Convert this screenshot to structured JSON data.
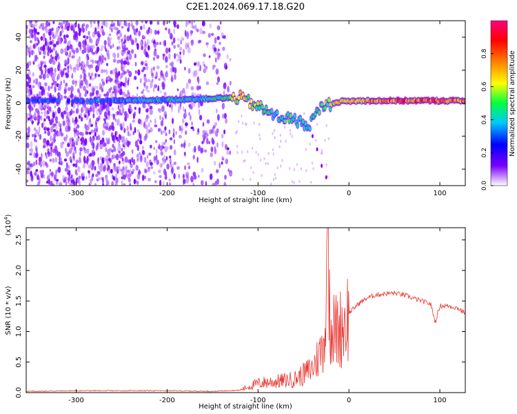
{
  "title": "C2E1.2024.069.17.18.G20",
  "chart_data": [
    {
      "type": "heatmap",
      "xlabel": "Height of straight line (km)",
      "ylabel": "Frequency (Hz)",
      "xlim": [
        -355,
        128
      ],
      "ylim": [
        -50,
        50
      ],
      "xticks": [
        -300,
        -200,
        -100,
        0,
        100
      ],
      "xtick_labels": [
        "-300",
        "-200",
        "-100",
        "0",
        "100"
      ],
      "yticks": [
        -40,
        -20,
        0,
        20,
        40
      ],
      "ytick_labels": [
        "-40",
        "-20",
        "0",
        "20",
        "40"
      ],
      "colorbar": {
        "label": "Normalized spectral amplitude",
        "range": [
          0,
          1
        ],
        "ticks": [
          0,
          0.2,
          0.4,
          0.6,
          0.8
        ],
        "tick_labels": [
          "0.0",
          "0.2",
          "0.4",
          "0.6",
          "0.8"
        ],
        "colors": [
          "#ffffff",
          "#7a00ff",
          "#0000ff",
          "#00c8ff",
          "#00ff40",
          "#ffff00",
          "#ff8000",
          "#ff0000",
          "#ff0080"
        ]
      },
      "ridge": [
        {
          "x": -355,
          "f": 1.5,
          "amp": 0.35
        },
        {
          "x": -250,
          "f": 1.5,
          "amp": 0.4
        },
        {
          "x": -200,
          "f": 2,
          "amp": 0.45
        },
        {
          "x": -140,
          "f": 3,
          "amp": 0.5
        },
        {
          "x": -120,
          "f": 3.5,
          "amp": 0.75
        },
        {
          "x": -100,
          "f": -2,
          "amp": 0.6
        },
        {
          "x": -80,
          "f": -8,
          "amp": 0.5
        },
        {
          "x": -60,
          "f": -10,
          "amp": 0.55
        },
        {
          "x": -45,
          "f": -14,
          "amp": 0.45
        },
        {
          "x": -30,
          "f": -2,
          "amp": 0.55
        },
        {
          "x": -10,
          "f": 1,
          "amp": 0.75
        },
        {
          "x": 20,
          "f": 1.5,
          "amp": 0.85
        },
        {
          "x": 60,
          "f": 1.5,
          "amp": 0.9
        },
        {
          "x": 100,
          "f": 1.5,
          "amp": 0.9
        },
        {
          "x": 128,
          "f": 1.5,
          "amp": 0.85
        }
      ]
    },
    {
      "type": "line",
      "xlabel": "Height of straight line (km)",
      "ylabel": "SNR (10 * v/v)",
      "scale_label": "(x10^4)",
      "xlim": [
        -355,
        128
      ],
      "ylim": [
        0,
        2.7
      ],
      "xticks": [
        -300,
        -200,
        -100,
        0,
        100
      ],
      "xtick_labels": [
        "-300",
        "-200",
        "-100",
        "0",
        "100"
      ],
      "yticks": [
        0,
        0.5,
        1.0,
        1.5,
        2.0,
        2.5
      ],
      "ytick_labels": [
        "0.0",
        "0.5",
        "1.0",
        "1.5",
        "2.0",
        "2.5"
      ],
      "color": "#e8302a",
      "series": [
        {
          "x": [
            -355,
            -300,
            -250,
            -200,
            -150,
            -120,
            -110,
            -100,
            -90,
            -80,
            -70,
            -60,
            -50,
            -40,
            -30,
            -25,
            -23,
            -20,
            -15,
            -10,
            -5,
            0,
            10,
            20,
            30,
            40,
            50,
            60,
            70,
            80,
            90,
            95,
            100,
            110,
            120,
            128
          ],
          "y": [
            0.02,
            0.03,
            0.03,
            0.03,
            0.02,
            0.04,
            0.1,
            0.15,
            0.17,
            0.18,
            0.2,
            0.22,
            0.3,
            0.4,
            0.7,
            1.2,
            2.7,
            1.1,
            1.0,
            1.05,
            1.15,
            1.3,
            1.45,
            1.55,
            1.6,
            1.62,
            1.63,
            1.6,
            1.55,
            1.5,
            1.45,
            1.15,
            1.42,
            1.42,
            1.38,
            1.3
          ]
        }
      ]
    }
  ]
}
